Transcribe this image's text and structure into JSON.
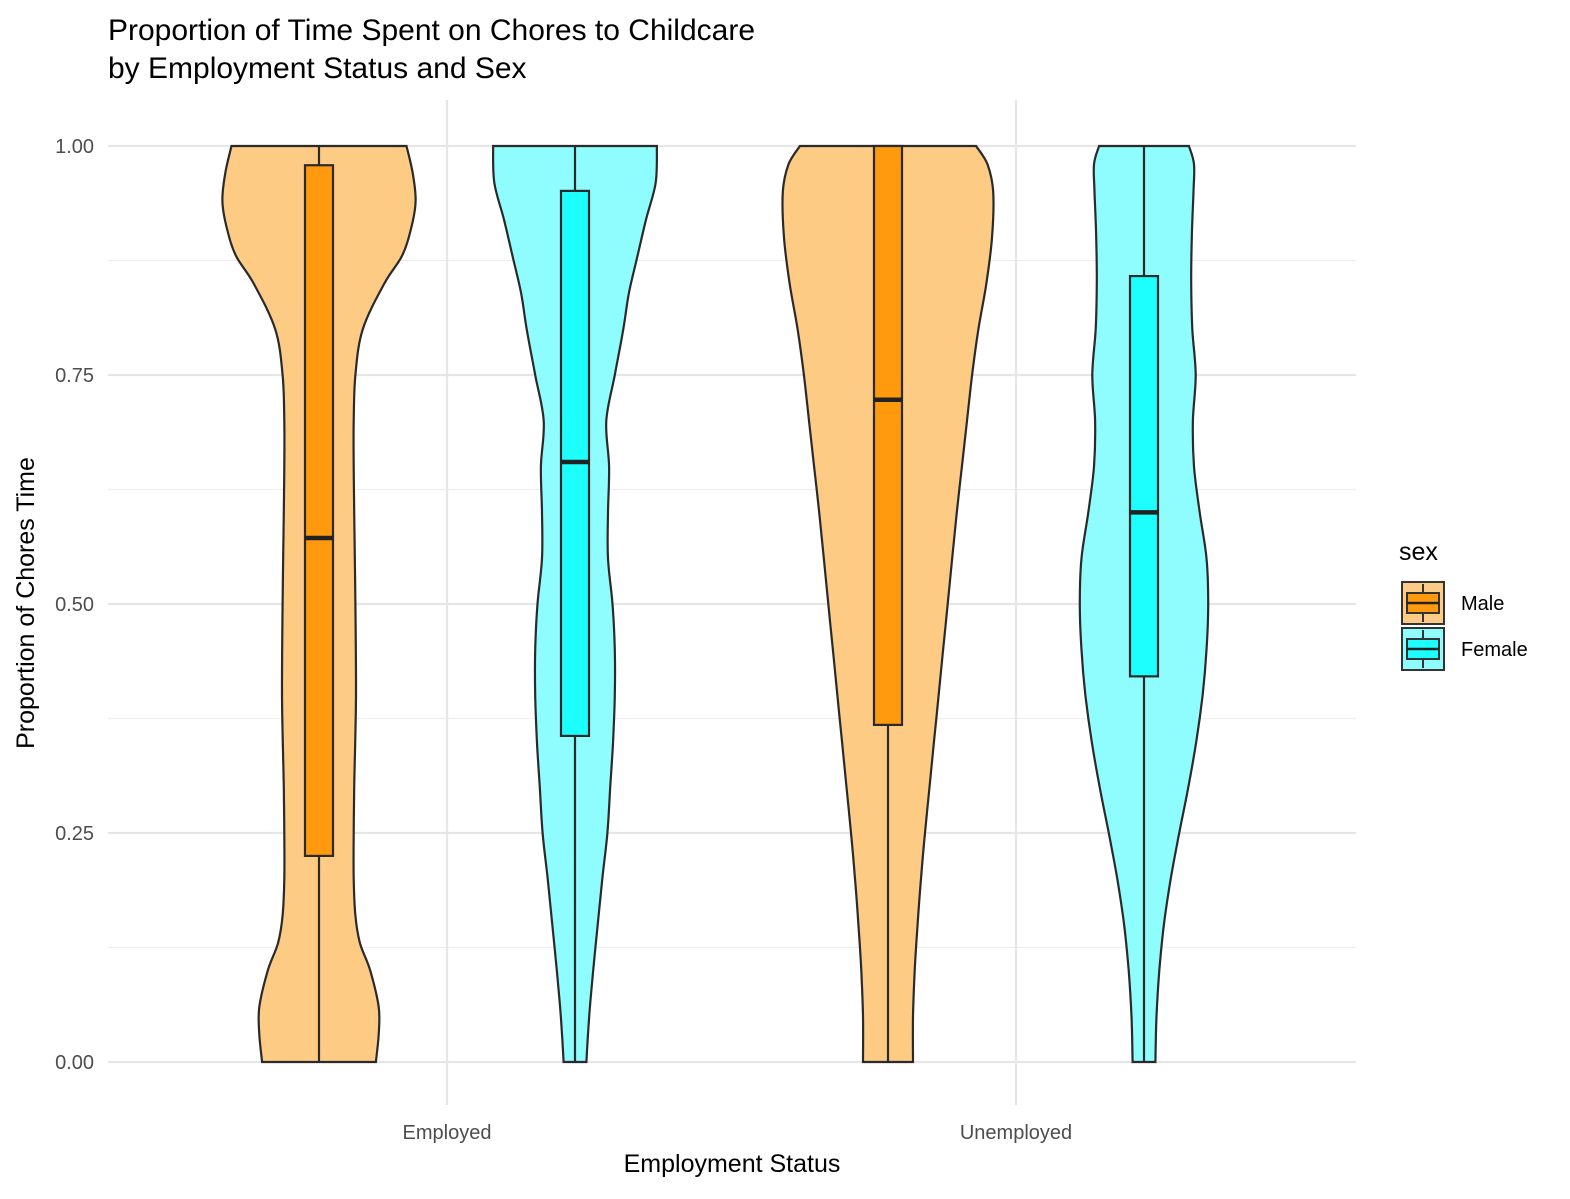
{
  "chart_data": {
    "type": "violin",
    "title_line1": "Proportion of Time Spent on Chores to Childcare",
    "title_line2": "by Employment Status and Sex",
    "xlabel": "Employment Status",
    "ylabel": "Proportion of Chores Time",
    "categories": [
      "Employed",
      "Unemployed"
    ],
    "ylim": [
      0,
      1
    ],
    "y_ticks": [
      "0.00",
      "0.25",
      "0.50",
      "0.75",
      "1.00"
    ],
    "y_tick_values": [
      0,
      0.25,
      0.5,
      0.75,
      1.0
    ],
    "grid": true,
    "legend": {
      "title": "sex",
      "position": "right",
      "entries": [
        "Male",
        "Female"
      ]
    },
    "series": [
      {
        "name": "Male",
        "box_color": "#ff9a0f",
        "violin_color": "#fecb85",
        "stats": [
          {
            "category": "Employed",
            "min": 0.0,
            "q1": 0.225,
            "median": 0.572,
            "q3": 0.979,
            "max": 1.0
          },
          {
            "category": "Unemployed",
            "min": 0.0,
            "q1": 0.368,
            "median": 0.723,
            "q3": 1.0,
            "max": 1.0
          }
        ],
        "density": [
          {
            "category": "Employed",
            "y": [
              0.0,
              0.03,
              0.06,
              0.1,
              0.13,
              0.16,
              0.2,
              0.25,
              0.3,
              0.4,
              0.5,
              0.6,
              0.65,
              0.7,
              0.75,
              0.8,
              0.85,
              0.88,
              0.91,
              0.94,
              0.97,
              1.0
            ],
            "half_width": [
              0.1,
              0.105,
              0.105,
              0.09,
              0.072,
              0.064,
              0.061,
              0.061,
              0.062,
              0.065,
              0.064,
              0.062,
              0.061,
              0.061,
              0.064,
              0.077,
              0.115,
              0.146,
              0.162,
              0.17,
              0.165,
              0.154
            ]
          },
          {
            "category": "Unemployed",
            "y": [
              0.0,
              0.05,
              0.1,
              0.15,
              0.2,
              0.25,
              0.3,
              0.35,
              0.4,
              0.45,
              0.5,
              0.55,
              0.6,
              0.65,
              0.7,
              0.75,
              0.8,
              0.85,
              0.9,
              0.95,
              0.98,
              1.0
            ],
            "half_width": [
              0.044,
              0.044,
              0.047,
              0.052,
              0.058,
              0.065,
              0.073,
              0.081,
              0.089,
              0.097,
              0.105,
              0.113,
              0.121,
              0.13,
              0.139,
              0.148,
              0.159,
              0.173,
              0.183,
              0.185,
              0.175,
              0.155
            ]
          }
        ]
      },
      {
        "name": "Female",
        "box_color": "#1dffff",
        "violin_color": "#8ffdfd",
        "stats": [
          {
            "category": "Employed",
            "min": 0.0,
            "q1": 0.356,
            "median": 0.655,
            "q3": 0.951,
            "max": 1.0
          },
          {
            "category": "Unemployed",
            "min": 0.0,
            "q1": 0.421,
            "median": 0.6,
            "q3": 0.858,
            "max": 1.0
          }
        ],
        "density": [
          {
            "category": "Employed",
            "y": [
              0.0,
              0.05,
              0.1,
              0.15,
              0.2,
              0.25,
              0.3,
              0.35,
              0.4,
              0.45,
              0.5,
              0.55,
              0.6,
              0.65,
              0.7,
              0.75,
              0.8,
              0.84,
              0.88,
              0.92,
              0.96,
              1.0
            ],
            "half_width": [
              0.02,
              0.025,
              0.032,
              0.04,
              0.048,
              0.057,
              0.062,
              0.067,
              0.07,
              0.07,
              0.066,
              0.058,
              0.058,
              0.06,
              0.055,
              0.07,
              0.085,
              0.095,
              0.11,
              0.125,
              0.142,
              0.144
            ]
          },
          {
            "category": "Unemployed",
            "y": [
              0.0,
              0.05,
              0.1,
              0.15,
              0.2,
              0.25,
              0.3,
              0.35,
              0.4,
              0.45,
              0.5,
              0.55,
              0.6,
              0.65,
              0.7,
              0.75,
              0.8,
              0.85,
              0.9,
              0.95,
              0.98,
              1.0
            ],
            "half_width": [
              0.02,
              0.022,
              0.027,
              0.035,
              0.047,
              0.062,
              0.078,
              0.092,
              0.103,
              0.11,
              0.113,
              0.11,
              0.098,
              0.088,
              0.086,
              0.091,
              0.085,
              0.083,
              0.084,
              0.087,
              0.088,
              0.079
            ]
          }
        ]
      }
    ]
  }
}
